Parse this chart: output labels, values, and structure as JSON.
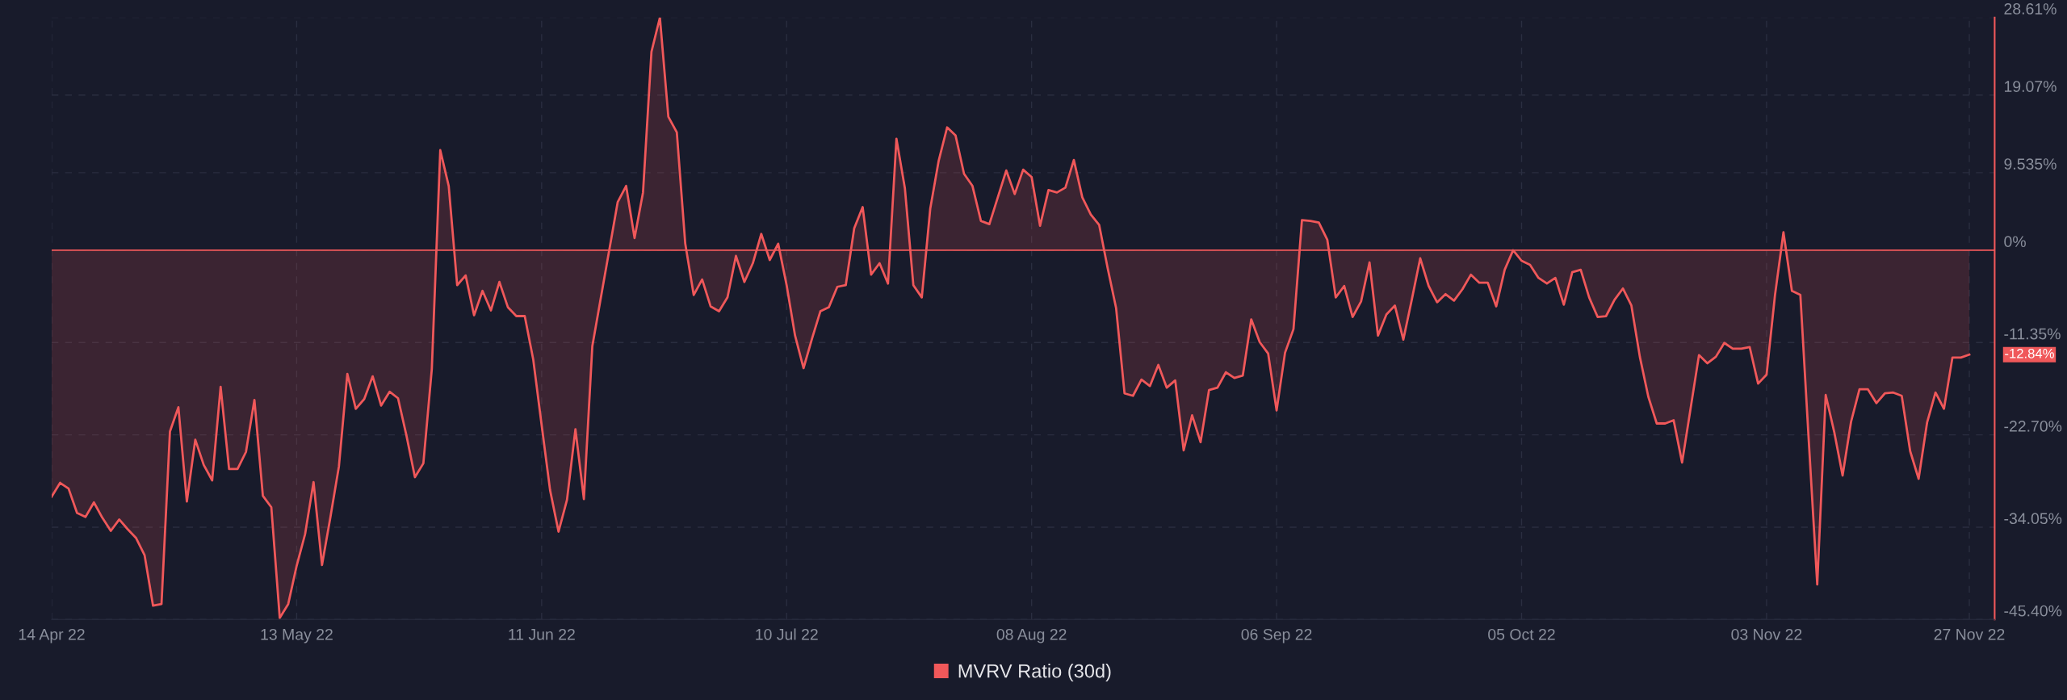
{
  "chart_data": {
    "type": "area",
    "xlim": [
      "2022-04-14",
      "2022-11-30"
    ],
    "xticks": [
      {
        "value": "2022-04-14",
        "label": "14 Apr 22"
      },
      {
        "value": "2022-05-13",
        "label": "13 May 22"
      },
      {
        "value": "2022-06-11",
        "label": "11 Jun 22"
      },
      {
        "value": "2022-07-10",
        "label": "10 Jul 22"
      },
      {
        "value": "2022-08-08",
        "label": "08 Aug 22"
      },
      {
        "value": "2022-09-06",
        "label": "06 Sep 22"
      },
      {
        "value": "2022-10-05",
        "label": "05 Oct 22"
      },
      {
        "value": "2022-11-03",
        "label": "03 Nov 22"
      },
      {
        "value": "2022-11-27",
        "label": "27 Nov 22"
      }
    ],
    "ylim": [
      -45.4,
      28.61
    ],
    "yticks": [
      {
        "value": 28.61,
        "label": "28.61%"
      },
      {
        "value": 19.07,
        "label": "19.07%"
      },
      {
        "value": 9.535,
        "label": "9.535%"
      },
      {
        "value": 0,
        "label": "0%"
      },
      {
        "value": -11.35,
        "label": "-11.35%"
      },
      {
        "value": -22.7,
        "label": "-22.70%"
      },
      {
        "value": -34.05,
        "label": "-34.05%"
      },
      {
        "value": -45.4,
        "label": "-45.40%"
      }
    ],
    "grid": true,
    "line_style": "solid",
    "marker": "none",
    "legend": "bottom",
    "ref_lines": [
      {
        "axis": "y",
        "value": 0,
        "label": null,
        "color": "#f0585a",
        "line_style": "solid"
      }
    ],
    "annotations": [
      {
        "text": "-12.84%",
        "x": "2022-11-27",
        "y": -12.84
      }
    ],
    "series": [
      {
        "name": "MVRV Ratio (30d)",
        "color": "#f0585a",
        "x": [
          "2022-04-14",
          "2022-04-15",
          "2022-04-16",
          "2022-04-17",
          "2022-04-18",
          "2022-04-19",
          "2022-04-20",
          "2022-04-21",
          "2022-04-22",
          "2022-04-23",
          "2022-04-24",
          "2022-04-25",
          "2022-04-26",
          "2022-04-27",
          "2022-04-28",
          "2022-04-29",
          "2022-04-30",
          "2022-05-01",
          "2022-05-02",
          "2022-05-03",
          "2022-05-04",
          "2022-05-05",
          "2022-05-06",
          "2022-05-07",
          "2022-05-08",
          "2022-05-09",
          "2022-05-10",
          "2022-05-11",
          "2022-05-12",
          "2022-05-13",
          "2022-05-14",
          "2022-05-15",
          "2022-05-16",
          "2022-05-17",
          "2022-05-18",
          "2022-05-19",
          "2022-05-20",
          "2022-05-21",
          "2022-05-22",
          "2022-05-23",
          "2022-05-24",
          "2022-05-25",
          "2022-05-26",
          "2022-05-27",
          "2022-05-28",
          "2022-05-29",
          "2022-05-30",
          "2022-05-31",
          "2022-06-01",
          "2022-06-02",
          "2022-06-03",
          "2022-06-04",
          "2022-06-05",
          "2022-06-06",
          "2022-06-07",
          "2022-06-08",
          "2022-06-09",
          "2022-06-10",
          "2022-06-11",
          "2022-06-12",
          "2022-06-13",
          "2022-06-14",
          "2022-06-15",
          "2022-06-16",
          "2022-06-17",
          "2022-06-18",
          "2022-06-19",
          "2022-06-20",
          "2022-06-21",
          "2022-06-22",
          "2022-06-23",
          "2022-06-24",
          "2022-06-25",
          "2022-06-26",
          "2022-06-27",
          "2022-06-28",
          "2022-06-29",
          "2022-06-30",
          "2022-07-01",
          "2022-07-02",
          "2022-07-03",
          "2022-07-04",
          "2022-07-05",
          "2022-07-06",
          "2022-07-07",
          "2022-07-08",
          "2022-07-09",
          "2022-07-10",
          "2022-07-11",
          "2022-07-12",
          "2022-07-13",
          "2022-07-14",
          "2022-07-15",
          "2022-07-16",
          "2022-07-17",
          "2022-07-18",
          "2022-07-19",
          "2022-07-20",
          "2022-07-21",
          "2022-07-22",
          "2022-07-23",
          "2022-07-24",
          "2022-07-25",
          "2022-07-26",
          "2022-07-27",
          "2022-07-28",
          "2022-07-29",
          "2022-07-30",
          "2022-07-31",
          "2022-08-01",
          "2022-08-02",
          "2022-08-03",
          "2022-08-04",
          "2022-08-05",
          "2022-08-06",
          "2022-08-07",
          "2022-08-08",
          "2022-08-09",
          "2022-08-10",
          "2022-08-11",
          "2022-08-12",
          "2022-08-13",
          "2022-08-14",
          "2022-08-15",
          "2022-08-16",
          "2022-08-17",
          "2022-08-18",
          "2022-08-19",
          "2022-08-20",
          "2022-08-21",
          "2022-08-22",
          "2022-08-23",
          "2022-08-24",
          "2022-08-25",
          "2022-08-26",
          "2022-08-27",
          "2022-08-28",
          "2022-08-29",
          "2022-08-30",
          "2022-08-31",
          "2022-09-01",
          "2022-09-02",
          "2022-09-03",
          "2022-09-04",
          "2022-09-05",
          "2022-09-06",
          "2022-09-07",
          "2022-09-08",
          "2022-09-09",
          "2022-09-10",
          "2022-09-11",
          "2022-09-12",
          "2022-09-13",
          "2022-09-14",
          "2022-09-15",
          "2022-09-16",
          "2022-09-17",
          "2022-09-18",
          "2022-09-19",
          "2022-09-20",
          "2022-09-21",
          "2022-09-22",
          "2022-09-23",
          "2022-09-24",
          "2022-09-25",
          "2022-09-26",
          "2022-09-27",
          "2022-09-28",
          "2022-09-29",
          "2022-09-30",
          "2022-10-01",
          "2022-10-02",
          "2022-10-03",
          "2022-10-04",
          "2022-10-05",
          "2022-10-06",
          "2022-10-07",
          "2022-10-08",
          "2022-10-09",
          "2022-10-10",
          "2022-10-11",
          "2022-10-12",
          "2022-10-13",
          "2022-10-14",
          "2022-10-15",
          "2022-10-16",
          "2022-10-17",
          "2022-10-18",
          "2022-10-19",
          "2022-10-20",
          "2022-10-21",
          "2022-10-22",
          "2022-10-23",
          "2022-10-24",
          "2022-10-25",
          "2022-10-26",
          "2022-10-27",
          "2022-10-28",
          "2022-10-29",
          "2022-10-30",
          "2022-10-31",
          "2022-11-01",
          "2022-11-02",
          "2022-11-03",
          "2022-11-04",
          "2022-11-05",
          "2022-11-06",
          "2022-11-07",
          "2022-11-08",
          "2022-11-09",
          "2022-11-10",
          "2022-11-11",
          "2022-11-12",
          "2022-11-13",
          "2022-11-14",
          "2022-11-15",
          "2022-11-16",
          "2022-11-17",
          "2022-11-18",
          "2022-11-19",
          "2022-11-20",
          "2022-11-21",
          "2022-11-22",
          "2022-11-23",
          "2022-11-24",
          "2022-11-25",
          "2022-11-26",
          "2022-11-27"
        ],
        "values": [
          -30.3,
          -28.6,
          -29.3,
          -32.3,
          -32.8,
          -31.0,
          -32.9,
          -34.5,
          -33.1,
          -34.3,
          -35.4,
          -37.5,
          -43.7,
          -43.5,
          -22.3,
          -19.3,
          -30.9,
          -23.3,
          -26.4,
          -28.3,
          -16.8,
          -26.9,
          -26.9,
          -24.8,
          -18.4,
          -30.2,
          -31.6,
          -45.2,
          -43.5,
          -38.8,
          -34.9,
          -28.5,
          -38.7,
          -32.8,
          -26.6,
          -15.2,
          -19.5,
          -18.3,
          -15.5,
          -19.1,
          -17.4,
          -18.2,
          -22.8,
          -27.9,
          -26.2,
          -14.6,
          12.3,
          7.9,
          -4.3,
          -3.1,
          -8.0,
          -5.0,
          -7.4,
          -3.9,
          -7.0,
          -8.1,
          -8.1,
          -13.4,
          -21.5,
          -29.5,
          -34.6,
          -30.7,
          -22.0,
          -30.6,
          -11.8,
          -5.9,
          0.0,
          5.9,
          7.9,
          1.5,
          7.1,
          24.4,
          28.6,
          16.4,
          14.5,
          0.8,
          -5.5,
          -3.6,
          -6.9,
          -7.5,
          -5.8,
          -0.7,
          -3.9,
          -1.6,
          2.0,
          -1.2,
          0.8,
          -4.3,
          -10.5,
          -14.5,
          -10.9,
          -7.5,
          -7.0,
          -4.5,
          -4.3,
          2.7,
          5.3,
          -3.0,
          -1.6,
          -4.1,
          13.7,
          7.6,
          -4.3,
          -5.8,
          5.1,
          11.0,
          15.1,
          14.1,
          9.4,
          7.9,
          3.6,
          3.2,
          6.5,
          9.8,
          6.9,
          9.9,
          9.0,
          3.0,
          7.4,
          7.1,
          7.7,
          11.1,
          6.5,
          4.4,
          3.1,
          -2.2,
          -7.1,
          -17.6,
          -17.9,
          -15.9,
          -16.7,
          -14.1,
          -16.9,
          -16.0,
          -24.6,
          -20.3,
          -23.6,
          -17.2,
          -16.9,
          -15.0,
          -15.7,
          -15.4,
          -8.5,
          -11.3,
          -12.7,
          -19.7,
          -12.6,
          -9.7,
          3.7,
          3.6,
          3.4,
          1.3,
          -5.8,
          -4.4,
          -8.2,
          -6.3,
          -1.5,
          -10.5,
          -7.9,
          -6.8,
          -11.0,
          -6.1,
          -1.0,
          -4.4,
          -6.4,
          -5.4,
          -6.2,
          -4.8,
          -3.0,
          -4.0,
          -4.0,
          -6.9,
          -2.4,
          0.0,
          -1.3,
          -1.8,
          -3.4,
          -4.1,
          -3.4,
          -6.7,
          -2.7,
          -2.4,
          -5.8,
          -8.2,
          -8.1,
          -6.1,
          -4.7,
          -6.8,
          -13.1,
          -18.0,
          -21.3,
          -21.3,
          -20.9,
          -26.1,
          -19.5,
          -12.9,
          -13.9,
          -13.1,
          -11.4,
          -12.1,
          -12.1,
          -11.9,
          -16.4,
          -15.3,
          -5.5,
          2.2,
          -5.0,
          -5.5,
          -23.5,
          -41.1,
          -17.8,
          -22.3,
          -27.7,
          -21.1,
          -17.1,
          -17.1,
          -18.8,
          -17.6,
          -17.5,
          -17.9,
          -24.7,
          -28.1,
          -21.2,
          -17.5,
          -19.5,
          -13.2,
          -13.2,
          -12.84
        ]
      }
    ]
  }
}
